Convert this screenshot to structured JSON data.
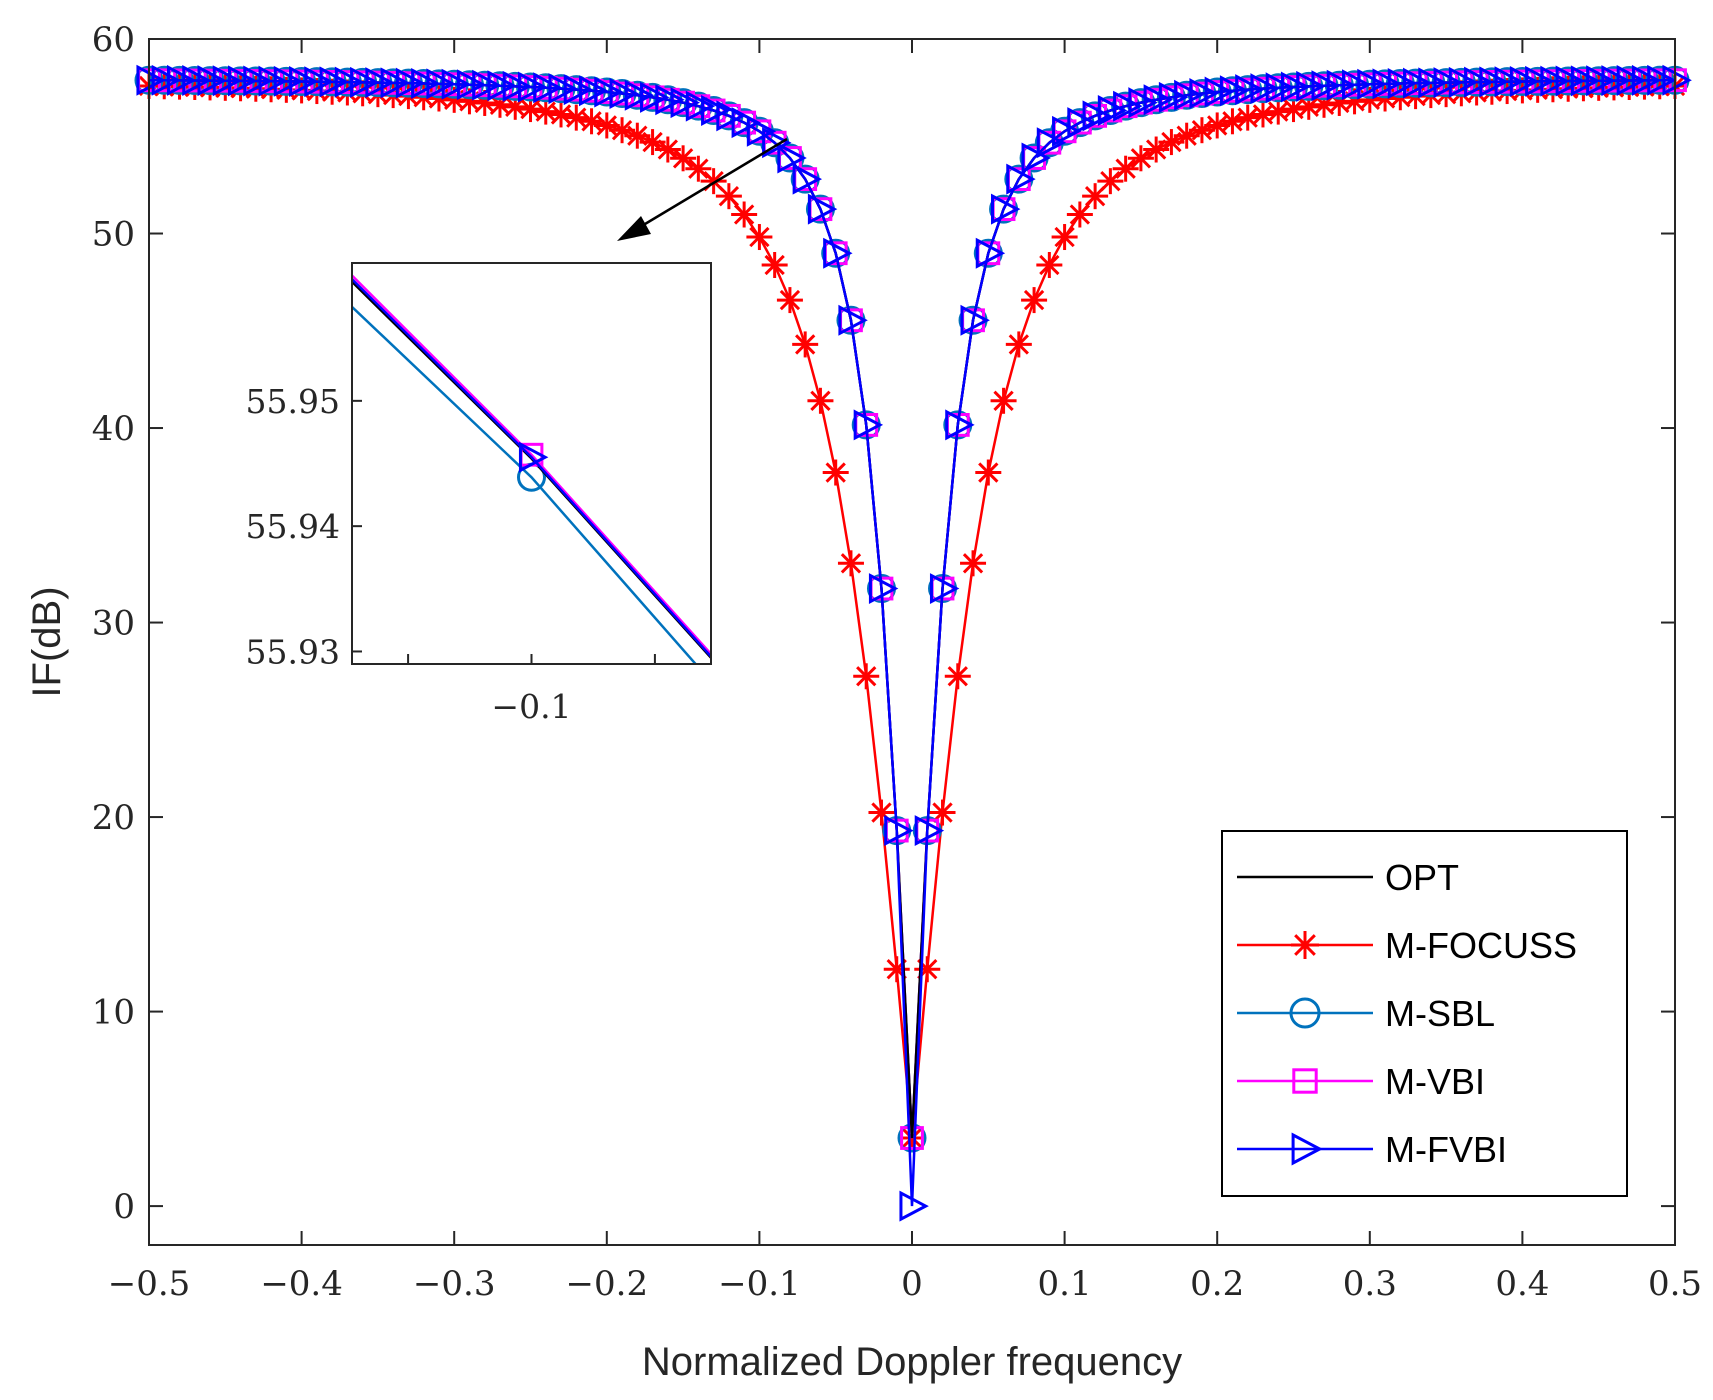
{
  "chart_data": {
    "type": "line",
    "title": "",
    "xlabel": "Normalized Doppler frequency",
    "ylabel": "IF(dB)",
    "xlim": [
      -0.5,
      0.5
    ],
    "ylim": [
      -2,
      60
    ],
    "xticks": [
      -0.5,
      -0.4,
      -0.3,
      -0.2,
      -0.1,
      0,
      0.1,
      0.2,
      0.3,
      0.4,
      0.5
    ],
    "xtick_labels": [
      "−0.5",
      "−0.4",
      "−0.3",
      "−0.2",
      "−0.1",
      "0",
      "0.1",
      "0.2",
      "0.3",
      "0.4",
      "0.5"
    ],
    "yticks": [
      0,
      10,
      20,
      30,
      40,
      50,
      60
    ],
    "ytick_labels": [
      "0",
      "10",
      "20",
      "30",
      "40",
      "50",
      "60"
    ],
    "grid": false,
    "legend_position": "bottom-right",
    "series": [
      {
        "name": "OPT",
        "color": "#000000",
        "marker": "none",
        "sharpness": 0.033
      },
      {
        "name": "M-FOCUSS",
        "color": "#ff0000",
        "marker": "asterisk",
        "sharpness": 0.062
      },
      {
        "name": "M-SBL",
        "color": "#0072bd",
        "marker": "circle",
        "sharpness": 0.033
      },
      {
        "name": "M-VBI",
        "color": "#ff00ff",
        "marker": "square",
        "sharpness": 0.033
      },
      {
        "name": "M-FVBI",
        "color": "#0000ff",
        "marker": "triangle-right",
        "sharpness": 0.033
      }
    ],
    "model": {
      "max_db": 58,
      "min_db": 3.5,
      "fvbi_min_db": 0,
      "step": 0.01
    },
    "inset": {
      "xlim": [
        -0.116,
        -0.084
      ],
      "ylim": [
        55.929,
        55.961
      ],
      "xticks": [
        -0.1
      ],
      "xtick_labels": [
        "−0.1"
      ],
      "yticks": [
        55.93,
        55.94,
        55.95
      ],
      "ytick_labels": [
        "55.93",
        "55.94",
        "55.95"
      ],
      "lines": [
        {
          "name": "M-SBL",
          "color": "#0072bd",
          "y_left": 55.9575,
          "y_mid": 55.9439,
          "y_right": 55.9276,
          "marker": "circle"
        },
        {
          "name": "OPT",
          "color": "#000000",
          "y_left": 55.9595,
          "y_mid": 55.9454,
          "y_right": 55.9295,
          "marker": "none"
        },
        {
          "name": "M-VBI",
          "color": "#ff00ff",
          "y_left": 55.96,
          "y_mid": 55.9457,
          "y_right": 55.9298,
          "marker": "square"
        },
        {
          "name": "M-FVBI",
          "color": "#0000ff",
          "y_left": 55.9597,
          "y_mid": 55.9455,
          "y_right": 55.9296,
          "marker": "triangle-right"
        }
      ]
    }
  }
}
